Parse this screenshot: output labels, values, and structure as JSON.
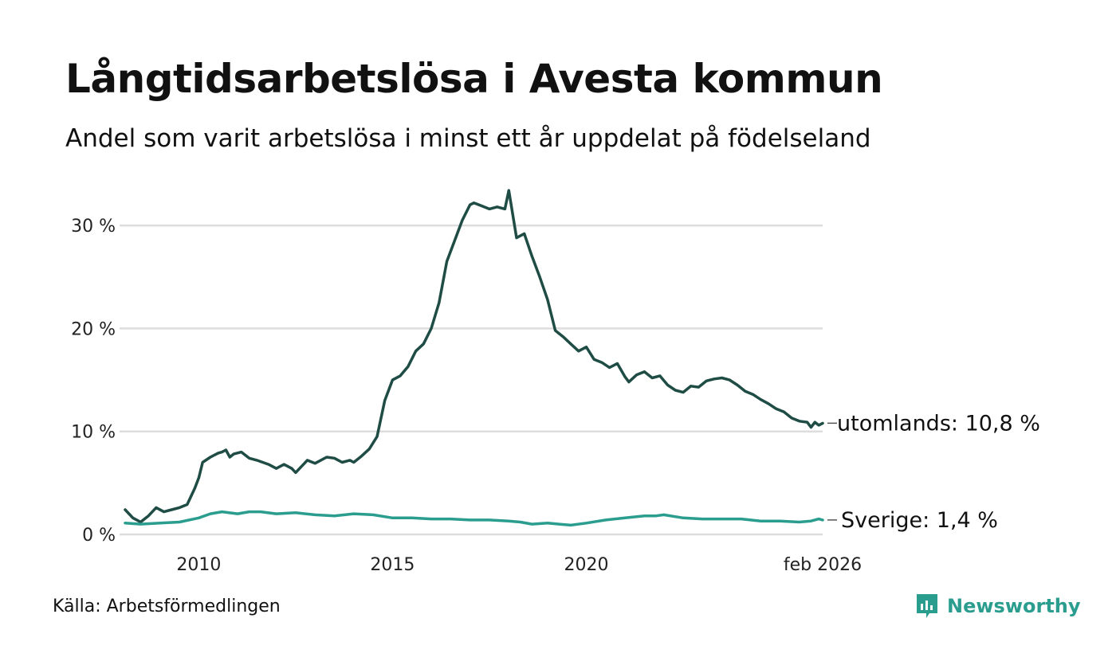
{
  "title": "Långtidsarbetslösa i Avesta kommun",
  "subtitle": "Andel som varit arbetslösa i minst ett år uppdelat på födelseland",
  "source": "Källa: Arbetsförmedlingen",
  "brand": "Newsworthy",
  "colors": {
    "utomlands": "#1f4d45",
    "sverige": "#2a9d8f",
    "grid": "#dddddd",
    "brand": "#2a9d8f"
  },
  "chart_data": {
    "type": "line",
    "title": "Långtidsarbetslösa i Avesta kommun",
    "xlabel": "",
    "ylabel": "",
    "x_range": [
      2008.1,
      2026.1
    ],
    "ylim": [
      0,
      33
    ],
    "y_ticks": [
      0,
      10,
      20,
      30
    ],
    "y_tick_labels": [
      "0 %",
      "10 %",
      "20 %",
      "30 %"
    ],
    "x_ticks": [
      2010,
      2015,
      2020,
      2026.1
    ],
    "x_tick_labels": [
      "2010",
      "2015",
      "2020",
      "feb 2026"
    ],
    "series": [
      {
        "name": "utomlands",
        "end_label": "utomlands: 10,8 %",
        "x": [
          2008.1,
          2008.3,
          2008.5,
          2008.7,
          2008.9,
          2009.1,
          2009.3,
          2009.5,
          2009.7,
          2009.9,
          2010.0,
          2010.1,
          2010.3,
          2010.5,
          2010.6,
          2010.7,
          2010.8,
          2010.9,
          2011.1,
          2011.3,
          2011.5,
          2011.8,
          2012.0,
          2012.2,
          2012.4,
          2012.5,
          2012.8,
          2013.0,
          2013.3,
          2013.5,
          2013.7,
          2013.9,
          2014.0,
          2014.2,
          2014.4,
          2014.6,
          2014.8,
          2015.0,
          2015.2,
          2015.4,
          2015.6,
          2015.8,
          2016.0,
          2016.2,
          2016.4,
          2016.6,
          2016.8,
          2017.0,
          2017.1,
          2017.3,
          2017.5,
          2017.7,
          2017.9,
          2018.0,
          2018.2,
          2018.4,
          2018.6,
          2018.8,
          2019.0,
          2019.2,
          2019.4,
          2019.6,
          2019.8,
          2020.0,
          2020.2,
          2020.4,
          2020.6,
          2020.8,
          2021.0,
          2021.1,
          2021.3,
          2021.5,
          2021.7,
          2021.9,
          2022.1,
          2022.3,
          2022.5,
          2022.7,
          2022.9,
          2023.1,
          2023.3,
          2023.5,
          2023.7,
          2023.9,
          2024.1,
          2024.3,
          2024.5,
          2024.7,
          2024.9,
          2025.1,
          2025.3,
          2025.5,
          2025.7,
          2025.8,
          2025.9,
          2026.0,
          2026.1
        ],
        "values": [
          2.4,
          1.6,
          1.2,
          1.8,
          2.6,
          2.2,
          2.4,
          2.6,
          2.9,
          4.5,
          5.5,
          7.0,
          7.5,
          7.9,
          8.0,
          8.2,
          7.5,
          7.8,
          8.0,
          7.4,
          7.2,
          6.8,
          6.4,
          6.8,
          6.4,
          6.0,
          7.2,
          6.9,
          7.5,
          7.4,
          7.0,
          7.2,
          7.0,
          7.6,
          8.3,
          9.5,
          13.0,
          15.0,
          15.4,
          16.3,
          17.8,
          18.5,
          20.0,
          22.5,
          26.5,
          28.5,
          30.5,
          32.0,
          32.2,
          31.9,
          31.6,
          31.8,
          31.6,
          33.4,
          28.8,
          29.2,
          27.0,
          25.0,
          22.8,
          19.8,
          19.2,
          18.5,
          17.8,
          18.2,
          17.0,
          16.7,
          16.2,
          16.6,
          15.3,
          14.8,
          15.5,
          15.8,
          15.2,
          15.4,
          14.5,
          14.0,
          13.8,
          14.4,
          14.3,
          14.9,
          15.1,
          15.2,
          15.0,
          14.5,
          13.9,
          13.6,
          13.1,
          12.7,
          12.2,
          11.9,
          11.3,
          11.0,
          10.9,
          10.4,
          10.9,
          10.6,
          10.8
        ]
      },
      {
        "name": "Sverige",
        "end_label": "Sverige:  1,4 %",
        "x": [
          2008.1,
          2008.5,
          2009.0,
          2009.5,
          2010.0,
          2010.3,
          2010.6,
          2011.0,
          2011.3,
          2011.6,
          2012.0,
          2012.5,
          2013.0,
          2013.5,
          2014.0,
          2014.5,
          2015.0,
          2015.5,
          2016.0,
          2016.5,
          2017.0,
          2017.5,
          2018.0,
          2018.3,
          2018.6,
          2019.0,
          2019.3,
          2019.6,
          2020.0,
          2020.5,
          2021.0,
          2021.5,
          2021.8,
          2022.0,
          2022.5,
          2023.0,
          2023.5,
          2024.0,
          2024.5,
          2025.0,
          2025.5,
          2025.8,
          2026.0,
          2026.1
        ],
        "values": [
          1.1,
          1.0,
          1.1,
          1.2,
          1.6,
          2.0,
          2.2,
          2.0,
          2.2,
          2.2,
          2.0,
          2.1,
          1.9,
          1.8,
          2.0,
          1.9,
          1.6,
          1.6,
          1.5,
          1.5,
          1.4,
          1.4,
          1.3,
          1.2,
          1.0,
          1.1,
          1.0,
          0.9,
          1.1,
          1.4,
          1.6,
          1.8,
          1.8,
          1.9,
          1.6,
          1.5,
          1.5,
          1.5,
          1.3,
          1.3,
          1.2,
          1.3,
          1.5,
          1.4
        ]
      }
    ]
  }
}
